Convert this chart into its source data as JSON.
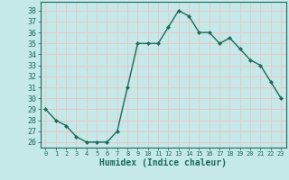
{
  "x": [
    0,
    1,
    2,
    3,
    4,
    5,
    6,
    7,
    8,
    9,
    10,
    11,
    12,
    13,
    14,
    15,
    16,
    17,
    18,
    19,
    20,
    21,
    22,
    23
  ],
  "y": [
    29,
    28,
    27.5,
    26.5,
    26,
    26,
    26,
    27,
    31,
    35,
    35,
    35,
    36.5,
    38,
    37.5,
    36,
    36,
    35,
    35.5,
    34.5,
    33.5,
    33,
    31.5,
    30
  ],
  "line_color": "#1a6b5a",
  "marker": "D",
  "marker_size": 2.2,
  "line_width": 1.0,
  "xlabel": "Humidex (Indice chaleur)",
  "xlabel_fontsize": 7,
  "yticks": [
    26,
    27,
    28,
    29,
    30,
    31,
    32,
    33,
    34,
    35,
    36,
    37,
    38
  ],
  "ylim": [
    25.5,
    38.8
  ],
  "xlim": [
    -0.5,
    23.5
  ],
  "bg_color": "#c5e8e8",
  "grid_color": "#e8c8c8",
  "tick_color": "#1a6b5a",
  "tick_label_color": "#1a6b5a",
  "xtick_fontsize": 5.0,
  "ytick_fontsize": 6.0,
  "spine_color": "#1a6b5a"
}
